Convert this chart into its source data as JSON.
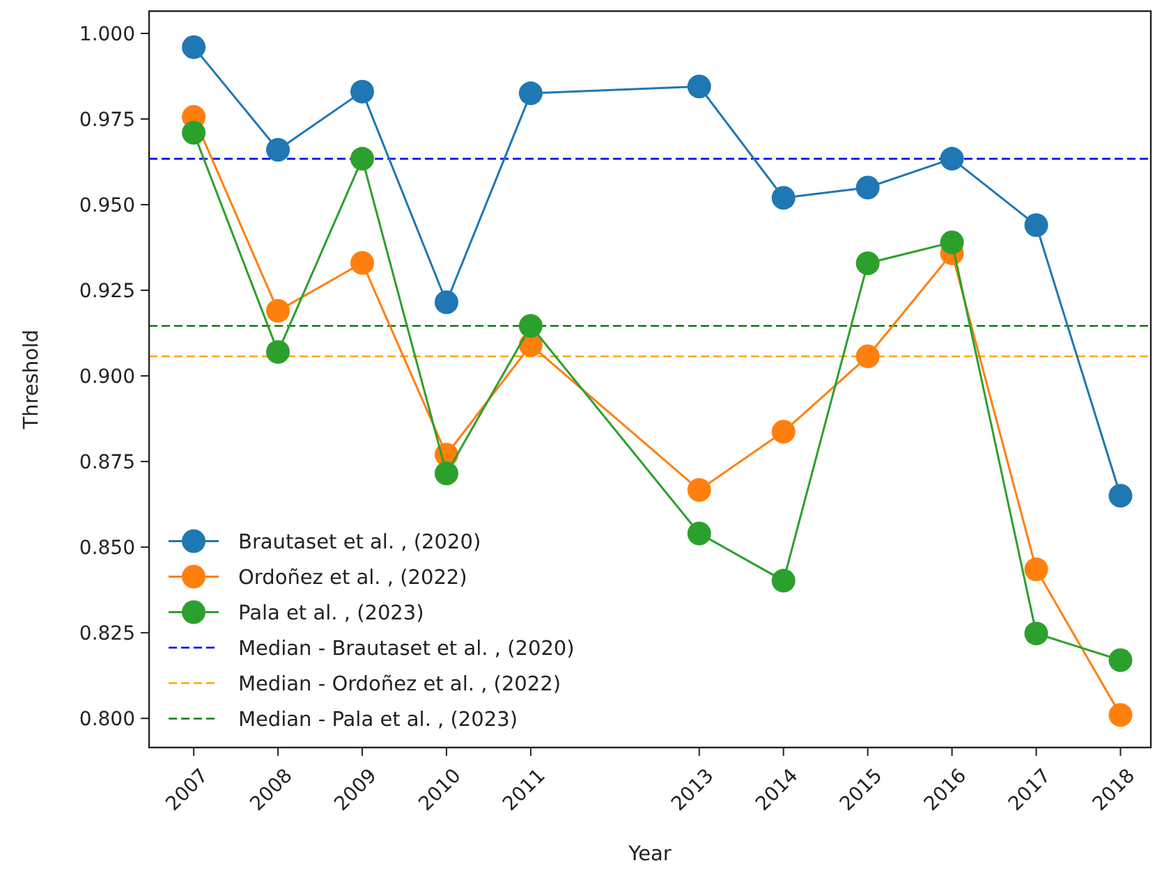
{
  "chart_data": {
    "type": "line",
    "xlabel": "Year",
    "ylabel": "Threshold",
    "x": [
      2007,
      2008,
      2009,
      2010,
      2011,
      2013,
      2014,
      2015,
      2016,
      2017,
      2018
    ],
    "series": [
      {
        "name": "Brautaset et al. , (2020)",
        "color": "#1f77b4",
        "values": [
          0.996,
          0.966,
          0.983,
          0.9215,
          0.9825,
          0.9845,
          0.952,
          0.955,
          0.9634,
          0.944,
          0.865
        ]
      },
      {
        "name": "Ordoñez et al. , (2022)",
        "color": "#ff7f0e",
        "values": [
          0.9756,
          0.919,
          0.933,
          0.877,
          0.909,
          0.8667,
          0.8837,
          0.9057,
          0.9358,
          0.8435,
          0.801
        ]
      },
      {
        "name": "Pala et al. , (2023)",
        "color": "#2ca02c",
        "values": [
          0.971,
          0.907,
          0.9634,
          0.8715,
          0.9146,
          0.854,
          0.8402,
          0.9329,
          0.939,
          0.8248,
          0.817
        ]
      }
    ],
    "ref_lines": [
      {
        "axis": "y",
        "value": 0.9634,
        "label": "Median - Brautaset et al. , (2020)",
        "color": "#0000ff",
        "line_style": "dashed"
      },
      {
        "axis": "y",
        "value": 0.9057,
        "label": "Median - Ordoñez et al. , (2022)",
        "color": "#ffa500",
        "line_style": "dashed"
      },
      {
        "axis": "y",
        "value": 0.9146,
        "label": "Median - Pala et al. , (2023)",
        "color": "#008000",
        "line_style": "dashed"
      }
    ],
    "xlim": [
      2006.47,
      2018.36
    ],
    "xticks": [
      2007,
      2008,
      2009,
      2010,
      2011,
      2013,
      2014,
      2015,
      2016,
      2017,
      2018
    ],
    "ylim": [
      0.7915,
      1.0065
    ],
    "yticks": [
      {
        "value": 0.8,
        "label": "0.800"
      },
      {
        "value": 0.825,
        "label": "0.825"
      },
      {
        "value": 0.85,
        "label": "0.850"
      },
      {
        "value": 0.875,
        "label": "0.875"
      },
      {
        "value": 0.9,
        "label": "0.900"
      },
      {
        "value": 0.925,
        "label": "0.925"
      },
      {
        "value": 0.95,
        "label": "0.950"
      },
      {
        "value": 0.975,
        "label": "0.975"
      },
      {
        "value": 1.0,
        "label": "1.000"
      }
    ],
    "marker": "circle",
    "line_style": "solid",
    "grid": false,
    "legend": "bottom left"
  }
}
